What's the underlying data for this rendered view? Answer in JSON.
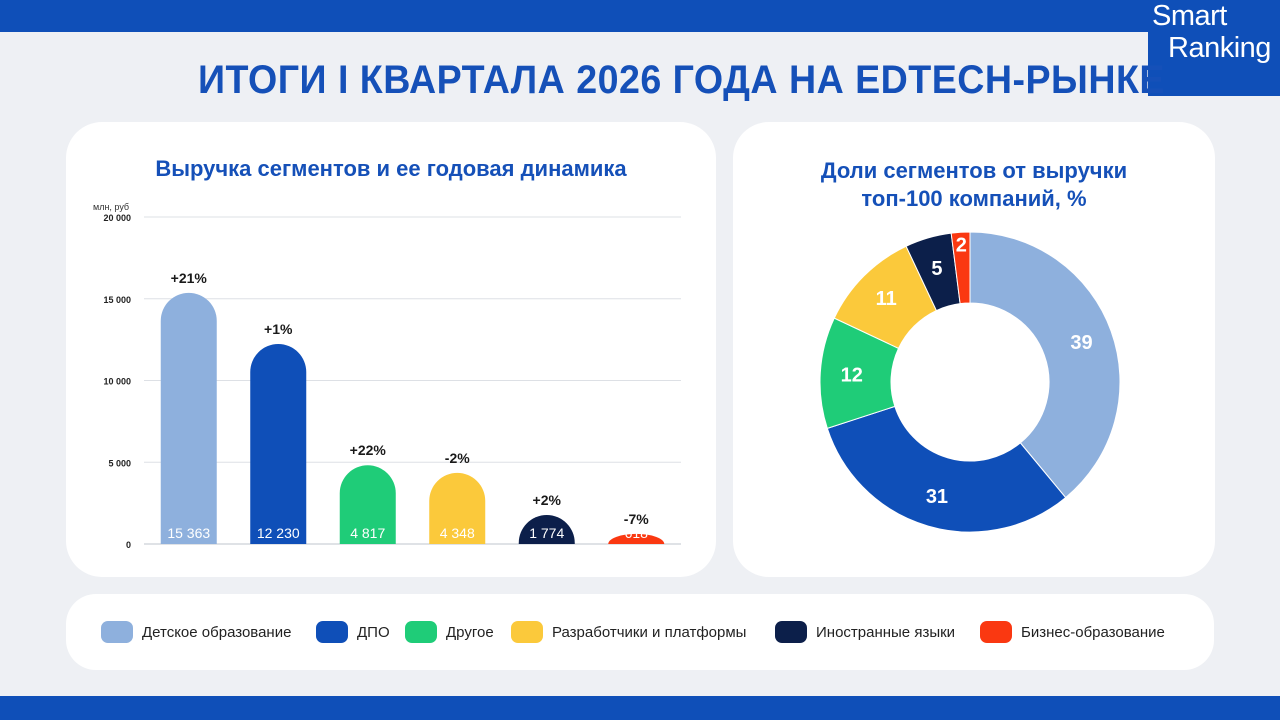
{
  "header": {
    "title": "ИТОГИ I КВАРТАЛА 2026 ГОДА НА EDTECH-РЫНКЕ",
    "logo_line1": "Smart",
    "logo_line2": "Ranking"
  },
  "colors": {
    "brand": "#0f4fb8",
    "title": "#1550b8"
  },
  "chart_data": [
    {
      "type": "bar",
      "title": "Выручка сегментов и ее годовая динамика",
      "ylabel": "млн, руб",
      "ylim": [
        0,
        20000
      ],
      "yticks": [
        0,
        5000,
        10000,
        15000,
        20000
      ],
      "ytick_labels": [
        "0",
        "5 000",
        "10 000",
        "15 000",
        "20 000"
      ],
      "grid": true,
      "categories": [
        "Детское образование",
        "ДПО",
        "Другое",
        "Разработчики и платформы",
        "Иностранные языки",
        "Бизнес-образование"
      ],
      "values": [
        15363,
        12230,
        4817,
        4348,
        1774,
        618
      ],
      "value_labels": [
        "15 363",
        "12 230",
        "4 817",
        "4 348",
        "1 774",
        "618"
      ],
      "growth_labels": [
        "+21%",
        "+1%",
        "+22%",
        "-2%",
        "+2%",
        "-7%"
      ],
      "colors": [
        "#8eb0dd",
        "#0f4fb8",
        "#1fcc78",
        "#fbc93b",
        "#0c1f4a",
        "#fa3811"
      ]
    },
    {
      "type": "pie",
      "title_lines": [
        "Доли сегментов от выручки",
        "топ-100 компаний, %"
      ],
      "categories": [
        "Детское образование",
        "ДПО",
        "Другое",
        "Разработчики и платформы",
        "Иностранные языки",
        "Бизнес-образование"
      ],
      "values": [
        39,
        31,
        12,
        11,
        5,
        2
      ],
      "colors": [
        "#8eb0dd",
        "#0f4fb8",
        "#1fcc78",
        "#fbc93b",
        "#0c1f4a",
        "#fa3811"
      ],
      "donut": true
    }
  ],
  "legend": {
    "items": [
      {
        "label": "Детское образование",
        "color": "#8eb0dd"
      },
      {
        "label": "ДПО",
        "color": "#0f4fb8"
      },
      {
        "label": "Другое",
        "color": "#1fcc78"
      },
      {
        "label": "Разработчики и платформы",
        "color": "#fbc93b"
      },
      {
        "label": "Иностранные языки",
        "color": "#0c1f4a"
      },
      {
        "label": "Бизнес-образование",
        "color": "#fa3811"
      }
    ]
  }
}
